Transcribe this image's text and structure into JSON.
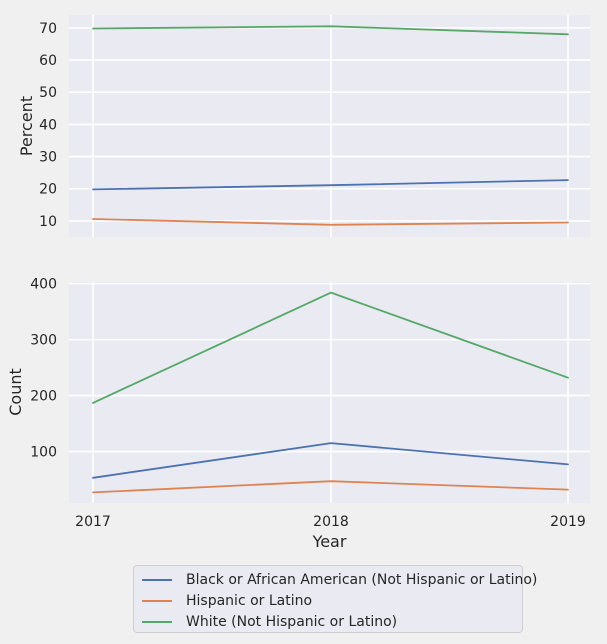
{
  "chart_data": [
    {
      "type": "line",
      "x": [
        "2017",
        "2018",
        "2019"
      ],
      "ylabel": "Percent",
      "xlabel": "",
      "ylim": [
        5,
        74
      ],
      "yticks": [
        10,
        20,
        30,
        40,
        50,
        60,
        70
      ],
      "grid": true,
      "series": [
        {
          "name": "Black or African American (Not Hispanic or Latino)",
          "color": "#4c72b0",
          "values": [
            19.8,
            21.1,
            22.7
          ]
        },
        {
          "name": "Hispanic or Latino",
          "color": "#dd8452",
          "values": [
            10.6,
            8.8,
            9.5
          ]
        },
        {
          "name": "White (Not Hispanic or Latino)",
          "color": "#55a868",
          "values": [
            69.8,
            70.5,
            68.0
          ]
        }
      ]
    },
    {
      "type": "line",
      "x": [
        "2017",
        "2018",
        "2019"
      ],
      "ylabel": "Count",
      "xlabel": "Year",
      "ylim": [
        8,
        403
      ],
      "yticks": [
        100,
        200,
        300,
        400
      ],
      "grid": true,
      "series": [
        {
          "name": "Black or African American (Not Hispanic or Latino)",
          "color": "#4c72b0",
          "values": [
            53,
            115,
            77
          ]
        },
        {
          "name": "Hispanic or Latino",
          "color": "#dd8452",
          "values": [
            27,
            47,
            32
          ]
        },
        {
          "name": "White (Not Hispanic or Latino)",
          "color": "#55a868",
          "values": [
            187,
            384,
            232
          ]
        }
      ]
    }
  ],
  "legend": {
    "placement": "bottom-center",
    "items": [
      {
        "label": "Black or African American (Not Hispanic or Latino)",
        "color": "#4c72b0"
      },
      {
        "label": "Hispanic or Latino",
        "color": "#dd8452"
      },
      {
        "label": "White (Not Hispanic or Latino)",
        "color": "#55a868"
      }
    ]
  }
}
